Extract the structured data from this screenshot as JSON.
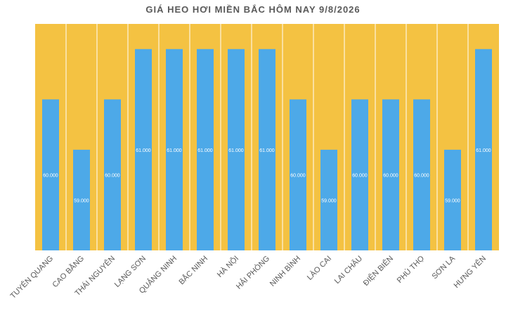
{
  "chart_data": {
    "type": "bar",
    "title": "GIÁ HEO HƠI MIỀN BẮC HÔM NAY 9/8/2026",
    "categories": [
      "TUYÊN QUANG",
      "CAO BẰNG",
      "THÁI NGUYÊN",
      "LẠNG SƠN",
      "QUẢNG NINH",
      "BẮC NINH",
      "HÀ NỘI",
      "HẢI PHÒNG",
      "NINH BÌNH",
      "LÀO CAI",
      "LAI CHÂU",
      "ĐIỆN BIÊN",
      "PHÚ THỌ",
      "SƠN LA",
      "HƯNG YÊN"
    ],
    "values": [
      60000,
      59000,
      60000,
      61000,
      61000,
      61000,
      61000,
      61000,
      60000,
      59000,
      60000,
      60000,
      60000,
      59000,
      61000
    ],
    "data_labels": [
      "60.000",
      "59.000",
      "60.000",
      "61.000",
      "61.000",
      "61.000",
      "61.000",
      "61.000",
      "60.000",
      "59.000",
      "60.000",
      "60.000",
      "60.000",
      "59.000",
      "61.000"
    ],
    "ylim": [
      57000,
      61500
    ],
    "xlabel": "",
    "ylabel": "",
    "legend": "none",
    "colors": {
      "bar": "#4da9e8",
      "background": "#f4c242",
      "divider": "#ffffff",
      "label": "#ffffff",
      "tick": "#595959",
      "title": "#595959"
    }
  }
}
